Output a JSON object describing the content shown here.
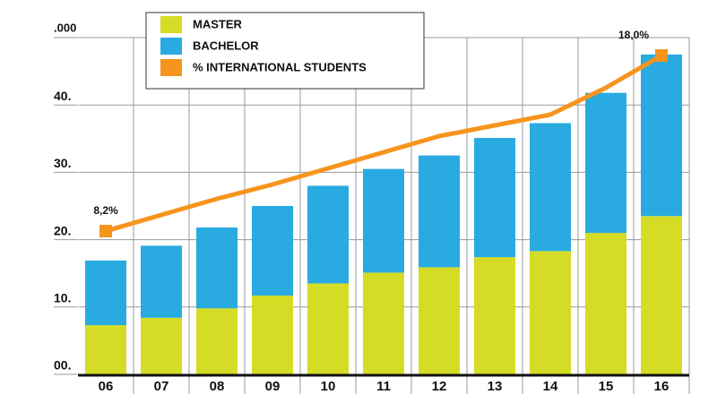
{
  "chart_data": {
    "type": "bar",
    "y_label": ".000",
    "categories": [
      "06",
      "07",
      "08",
      "09",
      "10",
      "11",
      "12",
      "13",
      "14",
      "15",
      "16"
    ],
    "ylim": [
      0,
      50
    ],
    "yticks": [
      {
        "value": 0,
        "label": "00."
      },
      {
        "value": 10,
        "label": "10."
      },
      {
        "value": 20,
        "label": "20."
      },
      {
        "value": 30,
        "label": "30."
      },
      {
        "value": 40,
        "label": "40."
      }
    ],
    "y2lim": [
      0.2,
      19
    ],
    "grid": true,
    "legend": "top-left",
    "series": [
      {
        "name": "MASTER",
        "color": "#d5dc26",
        "values": [
          7.3,
          8.4,
          9.8,
          11.7,
          13.5,
          15.1,
          15.9,
          17.4,
          18.3,
          21.0,
          23.5
        ]
      },
      {
        "name": "BACHELOR",
        "color": "#29abe2",
        "values": [
          9.6,
          10.7,
          12.0,
          13.3,
          14.5,
          15.4,
          16.6,
          17.7,
          19.0,
          20.8,
          24.0
        ]
      },
      {
        "name": "% INTERNATIONAL STUDENTS",
        "color": "#f7941d",
        "type": "line",
        "axis": "y2",
        "values": [
          8.2,
          9.1,
          10.0,
          10.8,
          11.7,
          12.6,
          13.5,
          14.1,
          14.7,
          16.2,
          18.0
        ],
        "value_labels": [
          "8,2%",
          null,
          null,
          null,
          null,
          null,
          null,
          null,
          null,
          null,
          "18,0%"
        ]
      }
    ]
  }
}
